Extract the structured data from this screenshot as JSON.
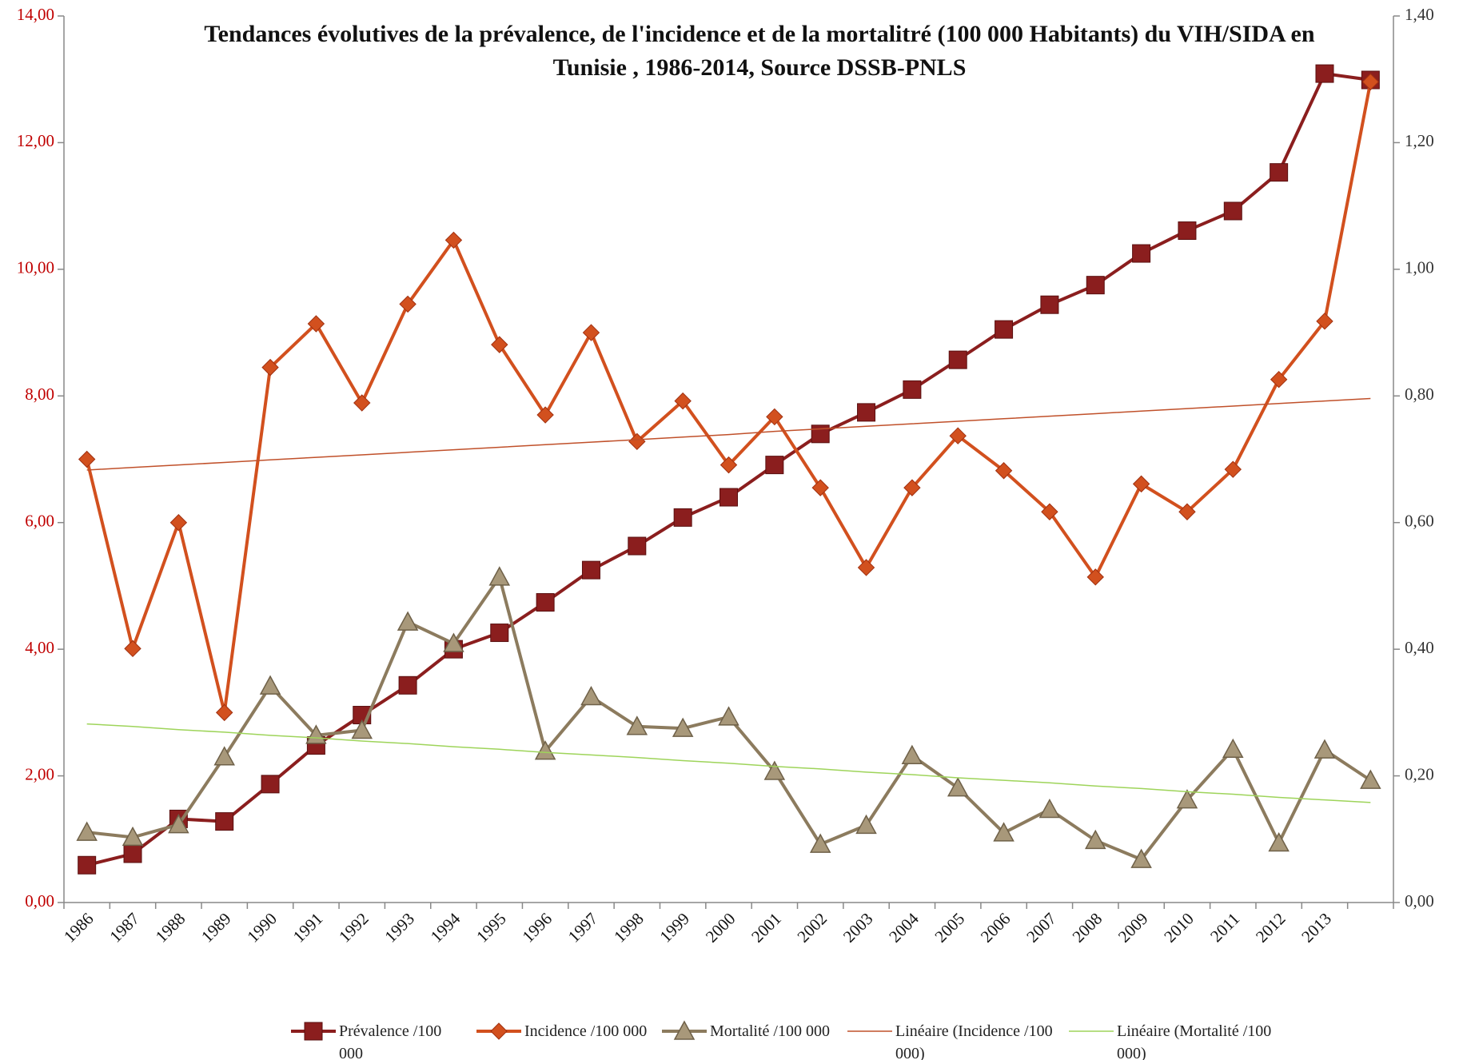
{
  "chart_data": {
    "type": "line",
    "title": "Tendances évolutives de la prévalence, de l'incidence et de la mortalitré (100 000 Habitants) du VIH/SIDA en Tunisie , 1986-2014, Source DSSB-PNLS",
    "categories": [
      "1986",
      "1987",
      "1988",
      "1989",
      "1990",
      "1991",
      "1992",
      "1993",
      "1994",
      "1995",
      "1996",
      "1997",
      "1998",
      "1999",
      "2000",
      "2001",
      "2002",
      "2003",
      "2004",
      "2005",
      "2006",
      "2007",
      "2008",
      "2009",
      "2010",
      "2011",
      "2012",
      "2013",
      null
    ],
    "series": [
      {
        "name": "Prévalence /100 000",
        "color": "#8b1e1e",
        "marker": "square",
        "axis": "y",
        "values": [
          0.59,
          0.77,
          1.32,
          1.28,
          1.87,
          2.48,
          2.96,
          3.43,
          4.0,
          4.26,
          4.74,
          5.25,
          5.63,
          6.08,
          6.4,
          6.91,
          7.4,
          7.74,
          8.1,
          8.57,
          9.05,
          9.44,
          9.75,
          10.25,
          10.61,
          10.92,
          11.53,
          13.09,
          12.99
        ]
      },
      {
        "name": "Incidence /100 000",
        "color": "#d2501e",
        "marker": "diamond",
        "axis": "y",
        "values": [
          7.0,
          4.01,
          6.0,
          3.0,
          8.45,
          9.14,
          7.89,
          9.45,
          10.46,
          8.81,
          7.7,
          9.0,
          7.28,
          7.92,
          6.91,
          7.67,
          6.55,
          5.29,
          6.55,
          7.37,
          6.82,
          6.17,
          5.14,
          6.61,
          6.17,
          6.84,
          8.26,
          9.18,
          12.96
        ]
      },
      {
        "name": "Mortalité /100 000",
        "color": "#8c7b5e",
        "marker": "triangle",
        "axis": "y2",
        "values": [
          0.111,
          0.103,
          0.123,
          0.23,
          0.342,
          0.264,
          0.272,
          0.443,
          0.409,
          0.514,
          0.239,
          0.325,
          0.278,
          0.275,
          0.293,
          0.207,
          0.092,
          0.122,
          0.232,
          0.181,
          0.11,
          0.147,
          0.098,
          0.068,
          0.162,
          0.242,
          0.094,
          0.241,
          0.193
        ]
      },
      {
        "name": "Linéaire (Incidence /100 000)",
        "color": "#c0502a",
        "marker": "none",
        "axis": "y",
        "values": [
          6.83,
          6.87,
          6.91,
          6.95,
          6.99,
          7.03,
          7.07,
          7.11,
          7.15,
          7.19,
          7.23,
          7.27,
          7.31,
          7.35,
          7.39,
          7.44,
          7.48,
          7.52,
          7.56,
          7.6,
          7.64,
          7.68,
          7.72,
          7.76,
          7.8,
          7.84,
          7.88,
          7.92,
          7.96
        ]
      },
      {
        "name": "Linéaire (Mortalité /100 000)",
        "color": "#9ed45a",
        "marker": "none",
        "axis": "y2",
        "values": [
          0.282,
          0.278,
          0.273,
          0.269,
          0.264,
          0.26,
          0.255,
          0.251,
          0.246,
          0.242,
          0.237,
          0.233,
          0.229,
          0.224,
          0.22,
          0.215,
          0.211,
          0.206,
          0.202,
          0.197,
          0.193,
          0.189,
          0.184,
          0.18,
          0.175,
          0.171,
          0.166,
          0.162,
          0.158
        ]
      }
    ],
    "ylim": [
      0,
      14
    ],
    "yticks": [
      {
        "value": 0,
        "label": "0,00"
      },
      {
        "value": 2,
        "label": "2,00"
      },
      {
        "value": 4,
        "label": "4,00"
      },
      {
        "value": 6,
        "label": "6,00"
      },
      {
        "value": 8,
        "label": "8,00"
      },
      {
        "value": 10,
        "label": "10,00"
      },
      {
        "value": 12,
        "label": "12,00"
      },
      {
        "value": 14,
        "label": "14,00"
      }
    ],
    "y2lim": [
      0,
      1.4
    ],
    "y2ticks": [
      {
        "value": 0,
        "label": "0,00"
      },
      {
        "value": 0.2,
        "label": "0,20"
      },
      {
        "value": 0.4,
        "label": "0,40"
      },
      {
        "value": 0.6,
        "label": "0,60"
      },
      {
        "value": 0.8,
        "label": "0,80"
      },
      {
        "value": 1.0,
        "label": "1,00"
      },
      {
        "value": 1.2,
        "label": "1,20"
      },
      {
        "value": 1.4,
        "label": "1,40"
      }
    ],
    "grid": false,
    "legend": "bottom"
  }
}
